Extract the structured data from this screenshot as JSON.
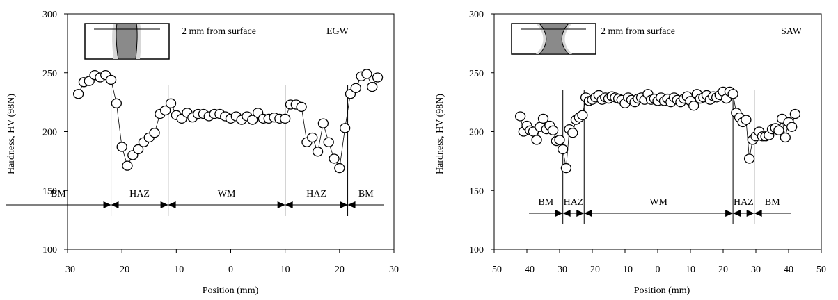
{
  "chart_data": [
    {
      "type": "scatter",
      "subtitle": "2 mm from surface",
      "process_label": "EGW",
      "xlabel": "Position (mm)",
      "ylabel": "Hardness, HV (98N)",
      "xlim": [
        -30,
        30
      ],
      "ylim": [
        100,
        300
      ],
      "xticks": [
        -30,
        -20,
        -10,
        0,
        10,
        20,
        30
      ],
      "yticks": [
        100,
        150,
        200,
        250,
        300
      ],
      "grid": false,
      "legend": "none",
      "boundaries": [
        -22,
        -11.5,
        10,
        21.5
      ],
      "zones": [
        {
          "label": "BM",
          "from": -30,
          "to": -22
        },
        {
          "label": "HAZ",
          "from": -22,
          "to": -11.5
        },
        {
          "label": "WM",
          "from": -11.5,
          "to": 10
        },
        {
          "label": "HAZ",
          "from": 10,
          "to": 21.5
        },
        {
          "label": "BM",
          "from": 21.5,
          "to": 30
        }
      ],
      "points": [
        [
          -28,
          232
        ],
        [
          -27,
          242
        ],
        [
          -26,
          243
        ],
        [
          -25,
          248
        ],
        [
          -24,
          246
        ],
        [
          -23,
          248
        ],
        [
          -22,
          244
        ],
        [
          -21,
          224
        ],
        [
          -20,
          187
        ],
        [
          -19,
          171
        ],
        [
          -18,
          180
        ],
        [
          -17,
          185
        ],
        [
          -16,
          191
        ],
        [
          -15,
          195
        ],
        [
          -14,
          199
        ],
        [
          -13,
          215
        ],
        [
          -12,
          218
        ],
        [
          -11,
          224
        ],
        [
          -10,
          214
        ],
        [
          -9,
          211
        ],
        [
          -8,
          216
        ],
        [
          -7,
          212
        ],
        [
          -6,
          215
        ],
        [
          -5,
          215
        ],
        [
          -4,
          213
        ],
        [
          -3,
          215
        ],
        [
          -2,
          215
        ],
        [
          -1,
          213
        ],
        [
          0,
          211
        ],
        [
          1,
          213
        ],
        [
          2,
          210
        ],
        [
          3,
          213
        ],
        [
          4,
          210
        ],
        [
          5,
          216
        ],
        [
          6,
          211
        ],
        [
          7,
          211
        ],
        [
          8,
          212
        ],
        [
          9,
          211
        ],
        [
          10,
          211
        ],
        [
          11,
          223
        ],
        [
          12,
          223
        ],
        [
          13,
          221
        ],
        [
          14,
          191
        ],
        [
          15,
          195
        ],
        [
          16,
          183
        ],
        [
          17,
          207
        ],
        [
          18,
          191
        ],
        [
          19,
          177
        ],
        [
          20,
          169
        ],
        [
          21,
          203
        ],
        [
          22,
          232
        ],
        [
          23,
          237
        ],
        [
          24,
          247
        ],
        [
          25,
          249
        ],
        [
          26,
          238
        ],
        [
          27,
          246
        ]
      ]
    },
    {
      "type": "scatter",
      "subtitle": "2 mm from surface",
      "process_label": "SAW",
      "xlabel": "Position (mm)",
      "ylabel": "Hardness, HV (98N)",
      "xlim": [
        -50,
        50
      ],
      "ylim": [
        100,
        300
      ],
      "xticks": [
        -50,
        -40,
        -30,
        -20,
        -10,
        0,
        10,
        20,
        30,
        40,
        50
      ],
      "yticks": [
        100,
        150,
        200,
        250,
        300
      ],
      "grid": false,
      "legend": "none",
      "boundaries": [
        -29,
        -22.5,
        23,
        29.5
      ],
      "zones": [
        {
          "label": "BM",
          "from": -43,
          "to": -29
        },
        {
          "label": "HAZ",
          "from": -29,
          "to": -22.5
        },
        {
          "label": "WM",
          "from": -22.5,
          "to": 23
        },
        {
          "label": "HAZ",
          "from": 23,
          "to": 29.5
        },
        {
          "label": "BM",
          "from": 29.5,
          "to": 43
        }
      ],
      "points": [
        [
          -42,
          213
        ],
        [
          -41,
          200
        ],
        [
          -40,
          205
        ],
        [
          -39,
          201
        ],
        [
          -38,
          200
        ],
        [
          -37,
          193
        ],
        [
          -36,
          204
        ],
        [
          -35,
          211
        ],
        [
          -34,
          202
        ],
        [
          -33,
          205
        ],
        [
          -32,
          201
        ],
        [
          -31,
          192
        ],
        [
          -30,
          193
        ],
        [
          -29,
          185
        ],
        [
          -28,
          169
        ],
        [
          -27,
          202
        ],
        [
          -26,
          199
        ],
        [
          -25,
          210
        ],
        [
          -24,
          212
        ],
        [
          -23,
          214
        ],
        [
          -22,
          229
        ],
        [
          -21,
          226
        ],
        [
          -20,
          227
        ],
        [
          -19,
          229
        ],
        [
          -18,
          231
        ],
        [
          -17,
          227
        ],
        [
          -16,
          229
        ],
        [
          -15,
          228
        ],
        [
          -14,
          230
        ],
        [
          -13,
          229
        ],
        [
          -12,
          228
        ],
        [
          -11,
          227
        ],
        [
          -10,
          224
        ],
        [
          -9,
          229
        ],
        [
          -8,
          227
        ],
        [
          -7,
          225
        ],
        [
          -6,
          228
        ],
        [
          -5,
          229
        ],
        [
          -4,
          227
        ],
        [
          -3,
          232
        ],
        [
          -2,
          227
        ],
        [
          -1,
          228
        ],
        [
          0,
          226
        ],
        [
          1,
          229
        ],
        [
          2,
          226
        ],
        [
          3,
          228
        ],
        [
          4,
          225
        ],
        [
          5,
          229
        ],
        [
          6,
          227
        ],
        [
          7,
          225
        ],
        [
          8,
          228
        ],
        [
          9,
          230
        ],
        [
          10,
          226
        ],
        [
          11,
          222
        ],
        [
          12,
          232
        ],
        [
          13,
          228
        ],
        [
          14,
          229
        ],
        [
          15,
          231
        ],
        [
          16,
          227
        ],
        [
          17,
          230
        ],
        [
          18,
          229
        ],
        [
          19,
          231
        ],
        [
          20,
          234
        ],
        [
          21,
          228
        ],
        [
          22,
          234
        ],
        [
          23,
          232
        ],
        [
          24,
          216
        ],
        [
          25,
          212
        ],
        [
          26,
          208
        ],
        [
          27,
          210
        ],
        [
          28,
          177
        ],
        [
          29,
          193
        ],
        [
          30,
          196
        ],
        [
          31,
          200
        ],
        [
          32,
          196
        ],
        [
          33,
          196
        ],
        [
          34,
          197
        ],
        [
          35,
          202
        ],
        [
          36,
          203
        ],
        [
          37,
          201
        ],
        [
          38,
          211
        ],
        [
          39,
          195
        ],
        [
          40,
          208
        ],
        [
          41,
          204
        ],
        [
          42,
          215
        ]
      ]
    }
  ]
}
